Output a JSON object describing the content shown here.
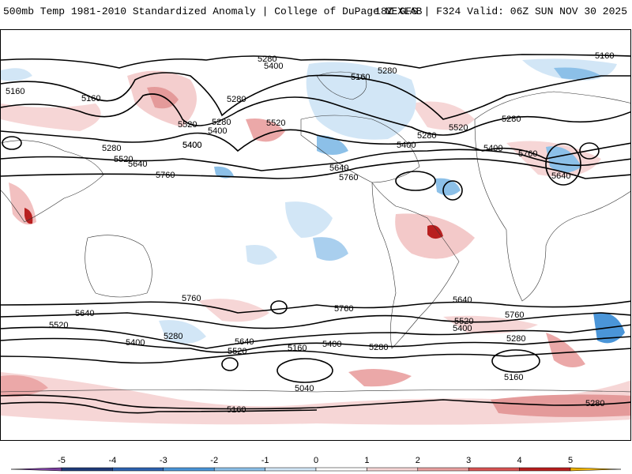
{
  "header": {
    "title": "500mb Temp 1981-2010 Standardized Anomaly | College of DuPage NEXLAB",
    "run_info": "18Z GFS | F324 Valid: 06Z SUN NOV 30 2025"
  },
  "map": {
    "contour_labels": [
      "5280",
      "5400",
      "5160",
      "5280",
      "5160",
      "5160",
      "5280",
      "5160",
      "5520",
      "5400",
      "5280",
      "5520",
      "5400",
      "5280",
      "5400",
      "5520",
      "5280",
      "5400",
      "5520",
      "5280",
      "5400",
      "5640",
      "5760",
      "5640",
      "5760",
      "5640",
      "5760",
      "5760",
      "5640",
      "5520",
      "5400",
      "5280",
      "5640",
      "5520",
      "5160",
      "5400",
      "5280",
      "5760",
      "5640",
      "5520",
      "5400",
      "5280",
      "5160",
      "5040",
      "5160",
      "5280",
      "5760"
    ]
  },
  "colorbar": {
    "ticks": [
      "-5",
      "-4",
      "-3",
      "-2",
      "-1",
      "0",
      "1",
      "2",
      "3",
      "4",
      "5"
    ],
    "colors": [
      "#7b3fa0",
      "#1f3a7a",
      "#2e62b0",
      "#4a95d8",
      "#8cc0e8",
      "#d2e6f6",
      "#ffffff",
      "#f6d6d6",
      "#e9a0a0",
      "#d95454",
      "#b81f1f",
      "#7a0a0a",
      "#f0b400"
    ]
  }
}
